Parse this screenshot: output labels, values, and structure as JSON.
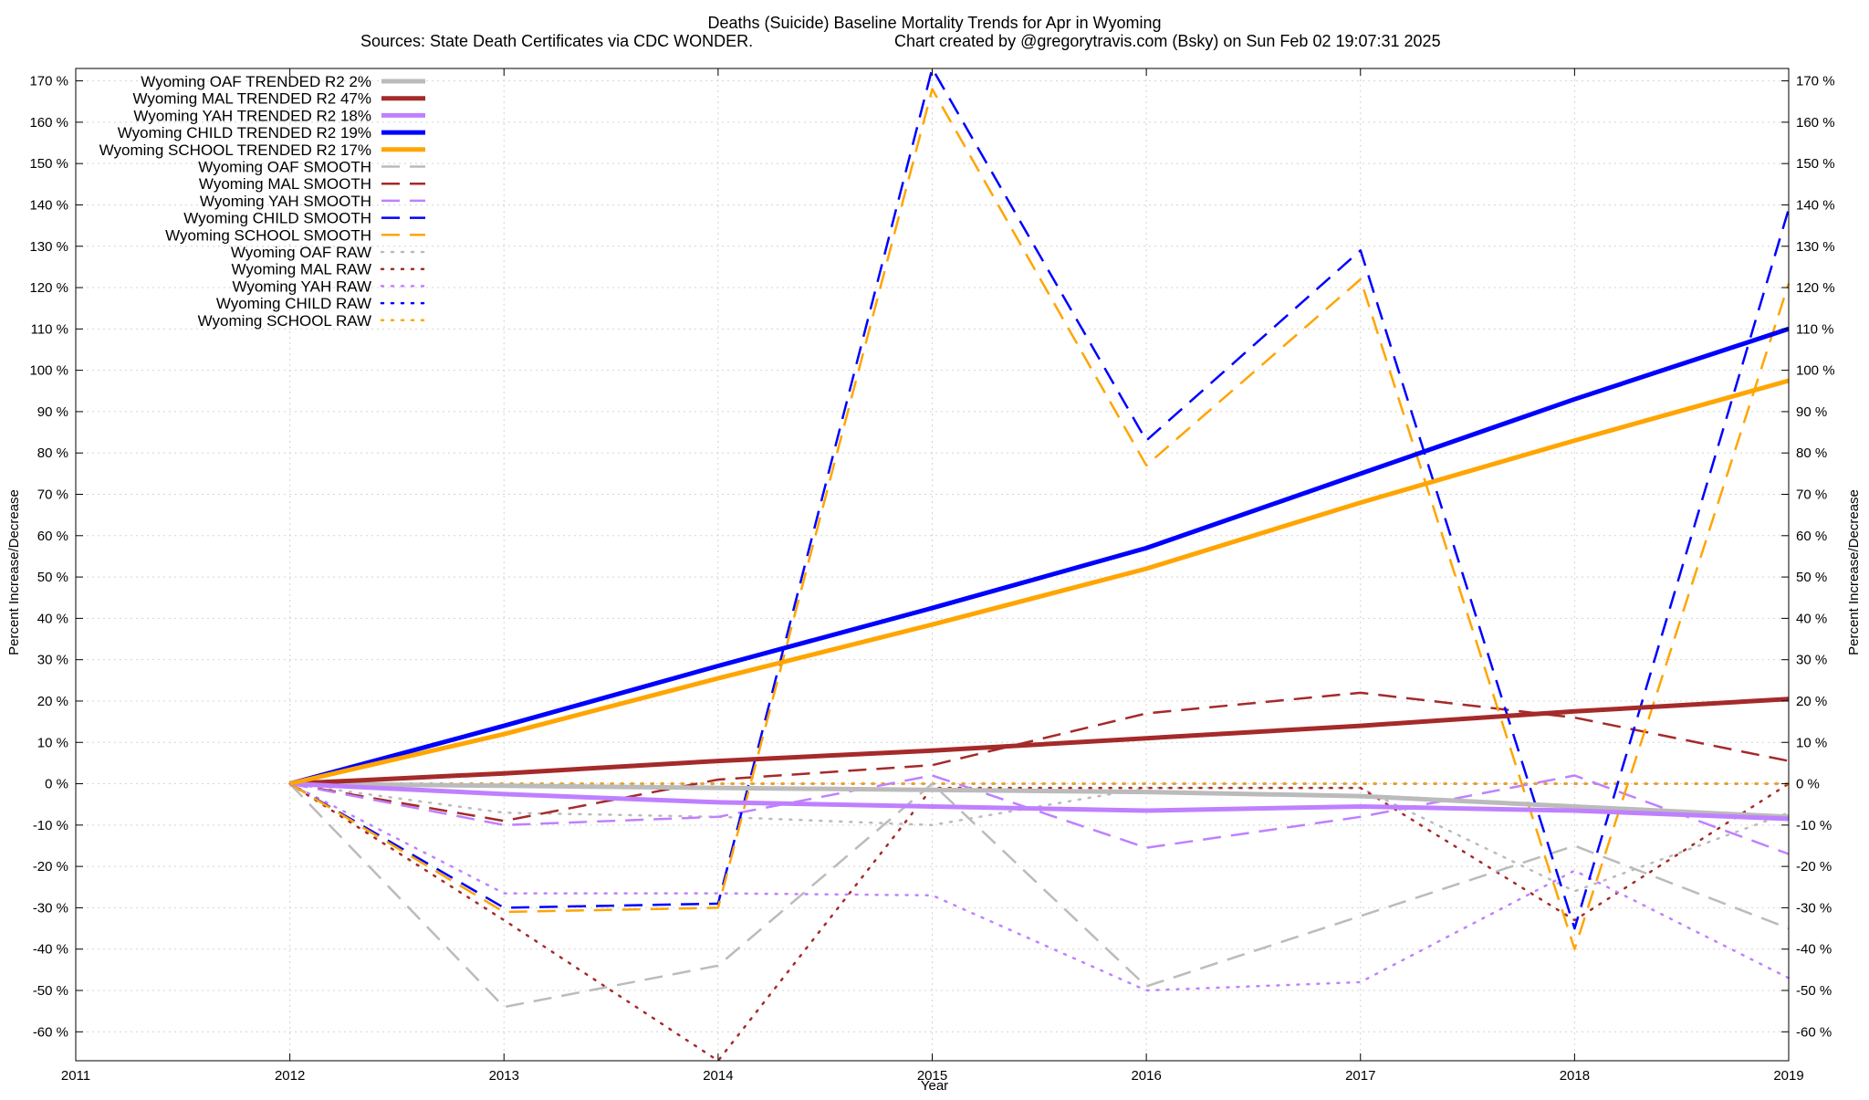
{
  "chart_data": {
    "type": "line",
    "title": "Deaths (Suicide)  Baseline Mortality Trends for Apr in Wyoming",
    "subtitle_left": "Sources: State Death Certificates via CDC WONDER.",
    "subtitle_right": "Chart created by @gregorytravis.com (Bsky) on Sun Feb 02 19:07:31 2025",
    "xlabel": "Year",
    "ylabel": "Percent Increase/Decrease",
    "xlim": [
      2011,
      2019
    ],
    "ylim": [
      -67,
      173
    ],
    "x_ticks": [
      "2011",
      "2012",
      "2013",
      "2014",
      "2015",
      "2016",
      "2017",
      "2018",
      "2019"
    ],
    "y_ticks": [
      "170 %",
      "160 %",
      "150 %",
      "140 %",
      "130 %",
      "120 %",
      "110 %",
      "100 %",
      "90 %",
      "80 %",
      "70 %",
      "60 %",
      "50 %",
      "40 %",
      "30 %",
      "20 %",
      "10 %",
      "0 %",
      "-10 %",
      "-20 %",
      "-30 %",
      "-40 %",
      "-50 %",
      "-60 %"
    ],
    "y_tick_values": [
      170,
      160,
      150,
      140,
      130,
      120,
      110,
      100,
      90,
      80,
      70,
      60,
      50,
      40,
      30,
      20,
      10,
      0,
      -10,
      -20,
      -30,
      -40,
      -50,
      -60
    ],
    "grid": true,
    "legend_position": "top-left",
    "series": [
      {
        "name": "Wyoming OAF TRENDED R2  2%",
        "style": "solid",
        "color": "#bbbbbb",
        "x": [
          2012,
          2013,
          2014,
          2015,
          2016,
          2017,
          2018,
          2019
        ],
        "y": [
          0,
          -0.5,
          -1,
          -1.5,
          -2,
          -3,
          -5.5,
          -8
        ]
      },
      {
        "name": "Wyoming MAL TRENDED R2  47%",
        "style": "solid",
        "color": "#a52a2a",
        "x": [
          2012,
          2013,
          2014,
          2015,
          2016,
          2017,
          2018,
          2019
        ],
        "y": [
          0,
          2.5,
          5.5,
          8,
          11,
          14,
          17.5,
          20.5
        ]
      },
      {
        "name": "Wyoming YAH TRENDED R2  18%",
        "style": "solid",
        "color": "#bf80ff",
        "x": [
          2012,
          2013,
          2014,
          2015,
          2016,
          2017,
          2018,
          2019
        ],
        "y": [
          0,
          -2.5,
          -4.5,
          -5.5,
          -6.5,
          -5.5,
          -6.5,
          -8.5
        ]
      },
      {
        "name": "Wyoming CHILD TRENDED R2  19%",
        "style": "solid",
        "color": "#0000ff",
        "x": [
          2012,
          2013,
          2014,
          2015,
          2016,
          2017,
          2018,
          2019
        ],
        "y": [
          0,
          14,
          28.5,
          42.5,
          57,
          75,
          93,
          110
        ]
      },
      {
        "name": "Wyoming SCHOOL TRENDED R2  17%",
        "style": "solid",
        "color": "#ffa500",
        "x": [
          2012,
          2013,
          2014,
          2015,
          2016,
          2017,
          2018,
          2019
        ],
        "y": [
          0,
          12,
          25.5,
          38.5,
          52,
          68,
          83,
          97.5
        ]
      },
      {
        "name": "Wyoming OAF SMOOTH",
        "style": "dashed",
        "color": "#bbbbbb",
        "x": [
          2012,
          2013,
          2014,
          2015,
          2016,
          2017,
          2018,
          2019
        ],
        "y": [
          0,
          -54,
          -44,
          0,
          -49,
          -32,
          -15,
          -35
        ]
      },
      {
        "name": "Wyoming MAL SMOOTH",
        "style": "dashed",
        "color": "#a52a2a",
        "x": [
          2012,
          2013,
          2014,
          2015,
          2016,
          2017,
          2018,
          2019
        ],
        "y": [
          0,
          -9,
          1,
          4.5,
          17,
          22,
          16,
          5.5
        ]
      },
      {
        "name": "Wyoming YAH SMOOTH",
        "style": "dashed",
        "color": "#bf80ff",
        "x": [
          2012,
          2013,
          2014,
          2015,
          2016,
          2017,
          2018,
          2019
        ],
        "y": [
          0,
          -10,
          -8,
          2,
          -15.5,
          -8,
          2,
          -17
        ]
      },
      {
        "name": "Wyoming CHILD SMOOTH",
        "style": "dashed",
        "color": "#0000ff",
        "x": [
          2012,
          2013,
          2014,
          2015,
          2016,
          2017,
          2018,
          2019
        ],
        "y": [
          0,
          -30,
          -29,
          173,
          83,
          129,
          -35,
          139
        ]
      },
      {
        "name": "Wyoming SCHOOL SMOOTH",
        "style": "dashed",
        "color": "#ffa500",
        "x": [
          2012,
          2013,
          2014,
          2015,
          2016,
          2017,
          2018,
          2019
        ],
        "y": [
          0,
          -31,
          -30,
          168,
          77,
          122,
          -40,
          121
        ]
      },
      {
        "name": "Wyoming OAF RAW",
        "style": "dotted",
        "color": "#bbbbbb",
        "x": [
          2012,
          2013,
          2014,
          2015,
          2016,
          2017,
          2018,
          2019
        ],
        "y": [
          0,
          -7,
          -8,
          -10,
          -1,
          -1,
          -26,
          -7
        ]
      },
      {
        "name": "Wyoming MAL RAW",
        "style": "dotted",
        "color": "#a52a2a",
        "x": [
          2012,
          2013,
          2014,
          2015,
          2016,
          2017,
          2018,
          2019
        ],
        "y": [
          0,
          -33,
          -67,
          -1,
          -1,
          -1,
          -33,
          0
        ]
      },
      {
        "name": "Wyoming YAH RAW",
        "style": "dotted",
        "color": "#bf80ff",
        "x": [
          2012,
          2013,
          2014,
          2015,
          2016,
          2017,
          2018,
          2019
        ],
        "y": [
          0,
          -26.5,
          -26.5,
          -27,
          -50,
          -48,
          -21,
          -47
        ]
      },
      {
        "name": "Wyoming CHILD RAW",
        "style": "dotted",
        "color": "#0000ff",
        "x": [
          2012,
          2013,
          2014,
          2015,
          2016,
          2017,
          2018,
          2019
        ],
        "y": [
          0,
          0,
          0,
          0,
          0,
          0,
          0,
          0
        ]
      },
      {
        "name": "Wyoming SCHOOL RAW",
        "style": "dotted",
        "color": "#ffa500",
        "x": [
          2012,
          2013,
          2014,
          2015,
          2016,
          2017,
          2018,
          2019
        ],
        "y": [
          0,
          0,
          0,
          0,
          0,
          0,
          0,
          0
        ]
      }
    ]
  }
}
